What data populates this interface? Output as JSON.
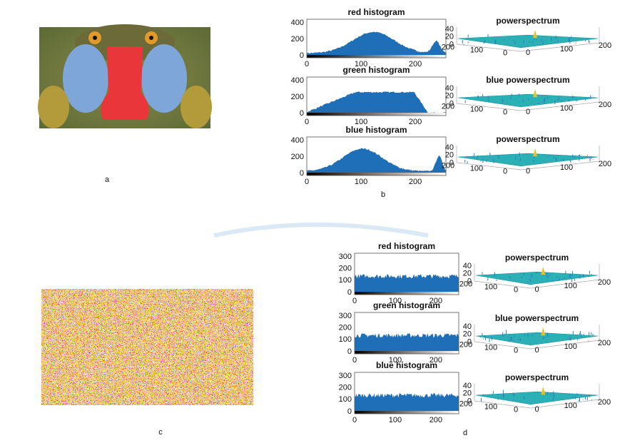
{
  "figure": {
    "labels": [
      "a",
      "b",
      "c",
      "d"
    ],
    "top": {
      "histograms": [
        {
          "title": "red histogram",
          "yticks": [
            "400",
            "200",
            "0"
          ],
          "xticks": [
            "0",
            "100",
            "200"
          ]
        },
        {
          "title": "green histogram",
          "yticks": [
            "400",
            "200",
            "0"
          ],
          "xticks": [
            "0",
            "100",
            "200"
          ]
        },
        {
          "title": "blue histogram",
          "yticks": [
            "400",
            "200",
            "0"
          ],
          "xticks": [
            "0",
            "100",
            "200"
          ]
        }
      ],
      "spectra": [
        {
          "title": "powerspectrum",
          "zticks": [
            "40",
            "20",
            "0"
          ],
          "left_ticks": [
            "200",
            "100",
            "0"
          ],
          "right_ticks": [
            "0",
            "100",
            "200"
          ]
        },
        {
          "title": "blue powerspectrum",
          "zticks": [
            "40",
            "20",
            "0"
          ],
          "left_ticks": [
            "200",
            "100",
            "0"
          ],
          "right_ticks": [
            "0",
            "100",
            "200"
          ]
        },
        {
          "title": "powerspectrum",
          "zticks": [
            "40",
            "20",
            "0"
          ],
          "left_ticks": [
            "200",
            "100",
            "0"
          ],
          "right_ticks": [
            "0",
            "100",
            "200"
          ]
        }
      ]
    },
    "bottom": {
      "histograms": [
        {
          "title": "red histogram",
          "yticks": [
            "300",
            "200",
            "100",
            "0"
          ],
          "xticks": [
            "0",
            "100",
            "200"
          ]
        },
        {
          "title": "green histogram",
          "yticks": [
            "300",
            "200",
            "100",
            "0"
          ],
          "xticks": [
            "0",
            "100",
            "200"
          ]
        },
        {
          "title": "blue histogram",
          "yticks": [
            "300",
            "200",
            "100",
            "0"
          ],
          "xticks": [
            "0",
            "100",
            "200"
          ]
        }
      ],
      "spectra": [
        {
          "title": "powerspectrum",
          "zticks": [
            "40",
            "20",
            "0"
          ],
          "left_ticks": [
            "200",
            "100",
            "0"
          ],
          "right_ticks": [
            "0",
            "100",
            "200"
          ]
        },
        {
          "title": "blue powerspectrum",
          "zticks": [
            "40",
            "20",
            "0"
          ],
          "left_ticks": [
            "200",
            "100",
            "0"
          ],
          "right_ticks": [
            "0",
            "100",
            "200"
          ]
        },
        {
          "title": "powerspectrum",
          "zticks": [
            "40",
            "20",
            "0"
          ],
          "left_ticks": [
            "200",
            "100",
            "0"
          ],
          "right_ticks": [
            "0",
            "100",
            "200"
          ]
        }
      ]
    }
  }
}
